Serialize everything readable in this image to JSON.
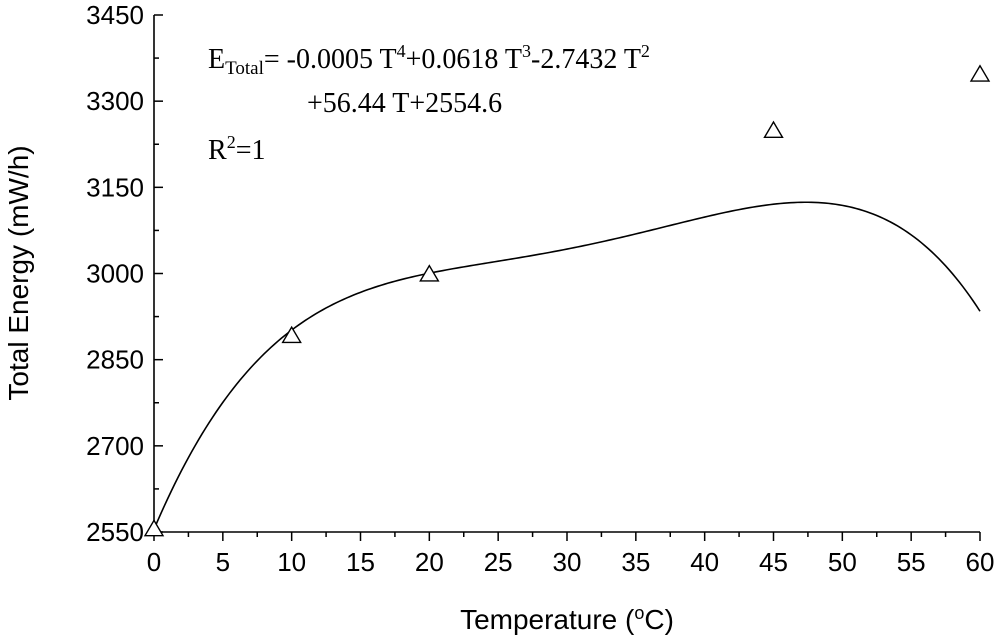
{
  "chart_data": {
    "type": "line",
    "xlabel": "Temperature (oC)",
    "ylabel": "Total Energy (mW/h)",
    "xlim": [
      0,
      60
    ],
    "ylim": [
      2550,
      3450
    ],
    "x_ticks": [
      0,
      5,
      10,
      15,
      20,
      25,
      30,
      35,
      40,
      45,
      50,
      55,
      60
    ],
    "y_ticks": [
      2550,
      2700,
      2850,
      3000,
      3150,
      3300,
      3450
    ],
    "grid": false,
    "series": [
      {
        "marker": "open-triangle",
        "points": [
          {
            "x": 0,
            "y": 2554.6
          },
          {
            "x": 10,
            "y": 2891
          },
          {
            "x": 20,
            "y": 2998
          },
          {
            "x": 45,
            "y": 3248
          },
          {
            "x": 60,
            "y": 3346
          }
        ]
      }
    ],
    "fit_curve": {
      "coefficients": {
        "a4": -0.0005,
        "a3": 0.0618,
        "a2": -2.7432,
        "a1": 56.44,
        "a0": 2554.6
      }
    },
    "annotation": {
      "line1_E": "E",
      "line1_sub": "Total",
      "line1_rest_a": "= -0.0005 T",
      "line1_sup4": "4",
      "line1_rest_b": "+0.0618 T",
      "line1_sup3": "3",
      "line1_rest_c": "-2.7432 T",
      "line1_sup2": "2",
      "line2": "+56.44 T+2554.6",
      "r2_R": "R",
      "r2_sup": "2",
      "r2_rest": "=1"
    }
  }
}
